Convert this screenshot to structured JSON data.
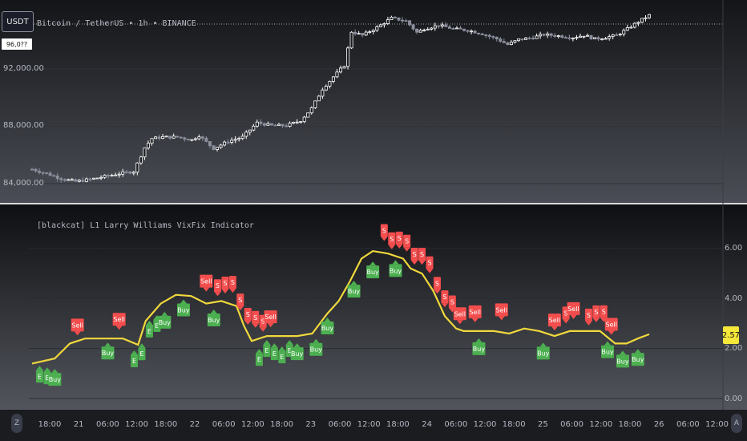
{
  "symbol_badge": "USDT",
  "top_price_tag": "96,0??",
  "main_title": "Bitcoin / TetherUS • 1h • BINANCE",
  "indicator_title": "[blackcat] L1 Larry Williams VixFix Indicator",
  "last_value_label": "2.57",
  "time_axis_btn": "Z",
  "auto_btn": "A",
  "colors": {
    "buy": "#4caf50",
    "sell": "#f44d4d",
    "line": "#f0d83c",
    "candle_up": "#ffffff",
    "candle_down": "#8a8f9c",
    "bg": "#131722"
  },
  "buy_label": "Buy",
  "sell_label": "Sell",
  "buy_short": "E",
  "sell_short": "S",
  "chart_data": [
    {
      "type": "candlestick",
      "title": "Bitcoin / TetherUS • 1h • BINANCE",
      "yticks": [
        "92,000.00",
        "88,000.00",
        "84,000.00"
      ],
      "ylim": [
        83800,
        96400
      ],
      "close_path": [
        [
          0,
          85000
        ],
        [
          4,
          84700
        ],
        [
          8,
          84350
        ],
        [
          12,
          84150
        ],
        [
          16,
          84300
        ],
        [
          20,
          84500
        ],
        [
          24,
          84700
        ],
        [
          28,
          84850
        ],
        [
          31,
          86500
        ],
        [
          33,
          87150
        ],
        [
          36,
          87250
        ],
        [
          40,
          87250
        ],
        [
          44,
          87050
        ],
        [
          46,
          87350
        ],
        [
          48,
          86900
        ],
        [
          50,
          86450
        ],
        [
          54,
          86950
        ],
        [
          58,
          87250
        ],
        [
          62,
          88250
        ],
        [
          66,
          88050
        ],
        [
          70,
          88050
        ],
        [
          74,
          88400
        ],
        [
          77,
          89250
        ],
        [
          80,
          90600
        ],
        [
          83,
          91450
        ],
        [
          86,
          92250
        ],
        [
          88,
          94600
        ],
        [
          91,
          94350
        ],
        [
          95,
          94900
        ],
        [
          99,
          95550
        ],
        [
          103,
          95350
        ],
        [
          106,
          94550
        ],
        [
          108,
          94800
        ],
        [
          112,
          95050
        ],
        [
          116,
          94800
        ],
        [
          120,
          94700
        ],
        [
          124,
          94450
        ],
        [
          128,
          94100
        ],
        [
          131,
          93700
        ],
        [
          134,
          94050
        ],
        [
          138,
          94200
        ],
        [
          141,
          94400
        ],
        [
          145,
          94300
        ],
        [
          149,
          94200
        ],
        [
          152,
          94350
        ],
        [
          155,
          94100
        ],
        [
          158,
          94200
        ],
        [
          161,
          94350
        ],
        [
          164,
          94800
        ],
        [
          167,
          95300
        ],
        [
          170,
          95750
        ]
      ]
    },
    {
      "type": "line",
      "title": "[blackcat] L1 Larry Williams VixFix Indicator",
      "yticks": [
        "6.00",
        "4.00",
        "2.00",
        "0.00"
      ],
      "ylim": [
        -0.1,
        6.7
      ],
      "xticks": [
        "18:00",
        "21",
        "06:00",
        "12:00",
        "18:00",
        "22",
        "06:00",
        "12:00",
        "18:00",
        "23",
        "06:00",
        "12:00",
        "18:00",
        "24",
        "06:00",
        "12:00",
        "18:00",
        "25",
        "06:00",
        "12:00",
        "18:00",
        "26",
        "06:00",
        "12:00"
      ],
      "series": [
        {
          "values": [
            [
              0,
              1.4
            ],
            [
              6,
              1.6
            ],
            [
              10,
              2.2
            ],
            [
              14,
              2.4
            ],
            [
              20,
              2.4
            ],
            [
              24,
              2.4
            ],
            [
              28,
              2.15
            ],
            [
              30,
              3.1
            ],
            [
              34,
              3.8
            ],
            [
              38,
              4.15
            ],
            [
              42,
              4.1
            ],
            [
              46,
              3.8
            ],
            [
              50,
              3.9
            ],
            [
              54,
              3.7
            ],
            [
              56,
              2.9
            ],
            [
              58,
              2.3
            ],
            [
              62,
              2.5
            ],
            [
              66,
              2.5
            ],
            [
              70,
              2.5
            ],
            [
              74,
              2.6
            ],
            [
              76,
              3.0
            ],
            [
              78,
              3.4
            ],
            [
              81,
              3.9
            ],
            [
              84,
              4.7
            ],
            [
              87,
              5.6
            ],
            [
              90,
              5.9
            ],
            [
              94,
              5.8
            ],
            [
              98,
              5.6
            ],
            [
              100,
              5.2
            ],
            [
              103,
              5.0
            ],
            [
              106,
              4.3
            ],
            [
              109,
              3.3
            ],
            [
              112,
              2.8
            ],
            [
              114,
              2.7
            ],
            [
              118,
              2.7
            ],
            [
              122,
              2.7
            ],
            [
              126,
              2.6
            ],
            [
              130,
              2.8
            ],
            [
              134,
              2.7
            ],
            [
              138,
              2.5
            ],
            [
              142,
              2.7
            ],
            [
              146,
              2.7
            ],
            [
              150,
              2.7
            ],
            [
              154,
              2.2
            ],
            [
              157,
              2.2
            ],
            [
              160,
              2.4
            ],
            [
              163,
              2.57
            ]
          ]
        }
      ]
    }
  ]
}
